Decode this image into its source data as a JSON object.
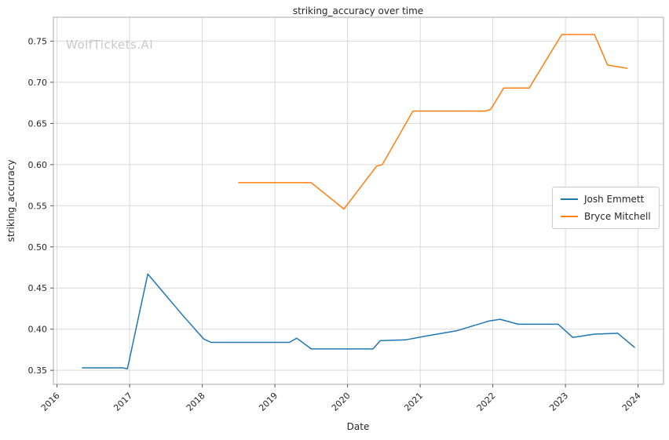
{
  "watermark": {
    "text": "WolfTickets.AI"
  },
  "chart_data": {
    "type": "line",
    "title": "striking_accuracy over time",
    "xlabel": "Date",
    "ylabel": "striking_accuracy",
    "xlim": [
      2015.95,
      2024.35
    ],
    "ylim": [
      0.333,
      0.779
    ],
    "xticks": [
      2016,
      2017,
      2018,
      2019,
      2020,
      2021,
      2022,
      2023,
      2024
    ],
    "yticks": [
      0.35,
      0.4,
      0.45,
      0.5,
      0.55,
      0.6,
      0.65,
      0.7,
      0.75
    ],
    "grid": true,
    "legend_position": "center right",
    "style": {
      "grid_color": "#d9d9d9",
      "spine_color": "#aaaaaa",
      "tick_color": "#555555",
      "text_color": "#262626"
    },
    "series": [
      {
        "name": "Josh Emmett",
        "color": "#1f77b4",
        "points": [
          [
            2016.35,
            0.353
          ],
          [
            2016.9,
            0.353
          ],
          [
            2016.97,
            0.352
          ],
          [
            2017.25,
            0.467
          ],
          [
            2017.72,
            0.418
          ],
          [
            2018.02,
            0.388
          ],
          [
            2018.12,
            0.384
          ],
          [
            2019.2,
            0.384
          ],
          [
            2019.3,
            0.389
          ],
          [
            2019.5,
            0.376
          ],
          [
            2020.35,
            0.376
          ],
          [
            2020.45,
            0.386
          ],
          [
            2020.8,
            0.387
          ],
          [
            2021.1,
            0.392
          ],
          [
            2021.5,
            0.398
          ],
          [
            2021.95,
            0.41
          ],
          [
            2022.1,
            0.412
          ],
          [
            2022.35,
            0.406
          ],
          [
            2022.9,
            0.406
          ],
          [
            2023.1,
            0.39
          ],
          [
            2023.4,
            0.394
          ],
          [
            2023.72,
            0.395
          ],
          [
            2023.95,
            0.378
          ]
        ]
      },
      {
        "name": "Bryce Mitchell",
        "color": "#ff7f0e",
        "points": [
          [
            2018.5,
            0.578
          ],
          [
            2019.5,
            0.578
          ],
          [
            2019.95,
            0.546
          ],
          [
            2020.4,
            0.598
          ],
          [
            2020.48,
            0.6
          ],
          [
            2020.9,
            0.665
          ],
          [
            2021.9,
            0.665
          ],
          [
            2021.97,
            0.667
          ],
          [
            2022.15,
            0.693
          ],
          [
            2022.5,
            0.693
          ],
          [
            2022.95,
            0.758
          ],
          [
            2023.4,
            0.758
          ],
          [
            2023.58,
            0.721
          ],
          [
            2023.85,
            0.717
          ]
        ]
      }
    ]
  }
}
